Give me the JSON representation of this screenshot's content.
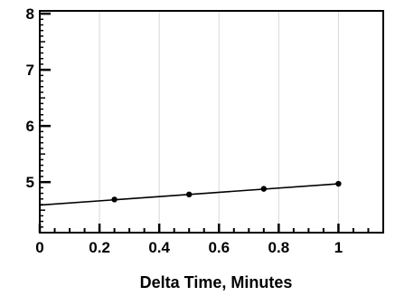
{
  "chart_data": {
    "type": "line",
    "title": "",
    "xlabel": "Delta Time, Minutes",
    "ylabel": "",
    "xlim": [
      0,
      1.15
    ],
    "ylim": [
      4.1,
      8.05
    ],
    "x_ticks": [
      0,
      0.2,
      0.4,
      0.6,
      0.8,
      1
    ],
    "x_tick_labels": [
      "0",
      "0.2",
      "0.4",
      "0.6",
      "0.8",
      "1"
    ],
    "y_ticks": [
      5,
      6,
      7,
      8
    ],
    "y_tick_labels": [
      "5",
      "6",
      "7",
      "8"
    ],
    "grid": "vertical",
    "series": [
      {
        "points": [
          {
            "x": 0.25,
            "y": 4.69
          },
          {
            "x": 0.5,
            "y": 4.78
          },
          {
            "x": 0.75,
            "y": 4.88
          },
          {
            "x": 1.0,
            "y": 4.97
          }
        ],
        "fit_line": [
          {
            "x": 0,
            "y": 4.59
          },
          {
            "x": 1.0,
            "y": 4.97
          }
        ]
      }
    ],
    "colors": {
      "axis": "#000000",
      "grid": "#d8d8d8",
      "line": "#000000",
      "marker": "#000000"
    }
  }
}
